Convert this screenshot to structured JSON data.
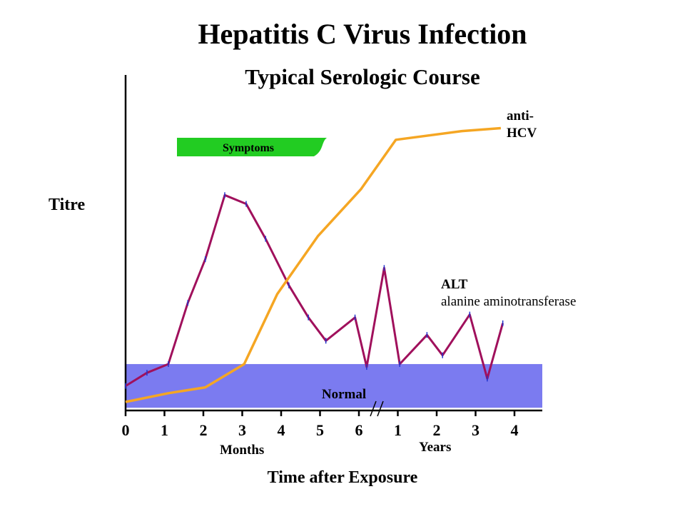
{
  "chart_data": {
    "type": "line",
    "title": "Hepatitis C Virus Infection",
    "subtitle": "Typical Serologic Course",
    "ylabel": "Titre",
    "xlabel": "Time after Exposure",
    "x_axis": {
      "segments": [
        {
          "unit": "Months",
          "ticks": [
            "0",
            "1",
            "2",
            "3",
            "4",
            "5",
            "6"
          ]
        },
        {
          "unit": "Years",
          "ticks": [
            "1",
            "2",
            "3",
            "4"
          ]
        }
      ],
      "axis_break_after": "6"
    },
    "ylim": [
      0,
      100
    ],
    "x_positions": [
      0,
      1,
      2,
      3,
      4,
      5,
      6,
      7,
      8,
      9,
      10
    ],
    "series": [
      {
        "name": "ALT",
        "annotation": "alanine aminotransferase",
        "color": "#a0105c",
        "x": [
          0,
          0.55,
          1.1,
          1.6,
          2.05,
          2.55,
          3.1,
          3.6,
          4.2,
          4.7,
          5.15,
          5.9,
          6.2,
          6.65,
          7.05,
          7.75,
          8.15,
          8.85,
          9.3,
          9.7
        ],
        "y": [
          5.5,
          10,
          13,
          34,
          49,
          71,
          68,
          56,
          40,
          29,
          21,
          29,
          12,
          46,
          13,
          23,
          16,
          30,
          8,
          27
        ]
      },
      {
        "name": "anti-HCV",
        "color": "#f5a623",
        "x": [
          0,
          1.1,
          2.05,
          3.05,
          3.9,
          4.95,
          6.05,
          6.95,
          8.65,
          9.65
        ],
        "y": [
          0,
          3,
          5,
          13,
          37,
          57,
          73,
          90,
          93,
          94
        ]
      }
    ],
    "bands": [
      {
        "name": "Normal",
        "color": "#7b7bf0",
        "x_range": [
          0,
          10.5
        ],
        "y_range": [
          -2,
          13
        ]
      },
      {
        "name": "Symptoms",
        "color": "#22cc22",
        "x_range": [
          1.3,
          5.2
        ],
        "y_range": [
          79,
          83
        ]
      }
    ],
    "labels": {
      "months": "Months",
      "years": "Years",
      "normal": "Normal",
      "symptoms": "Symptoms",
      "anti_hcv_line1": "anti-",
      "anti_hcv_line2": "HCV",
      "alt_line1": "ALT",
      "alt_line2": "alanine aminotransferase"
    },
    "grid": false,
    "legend": "none"
  }
}
